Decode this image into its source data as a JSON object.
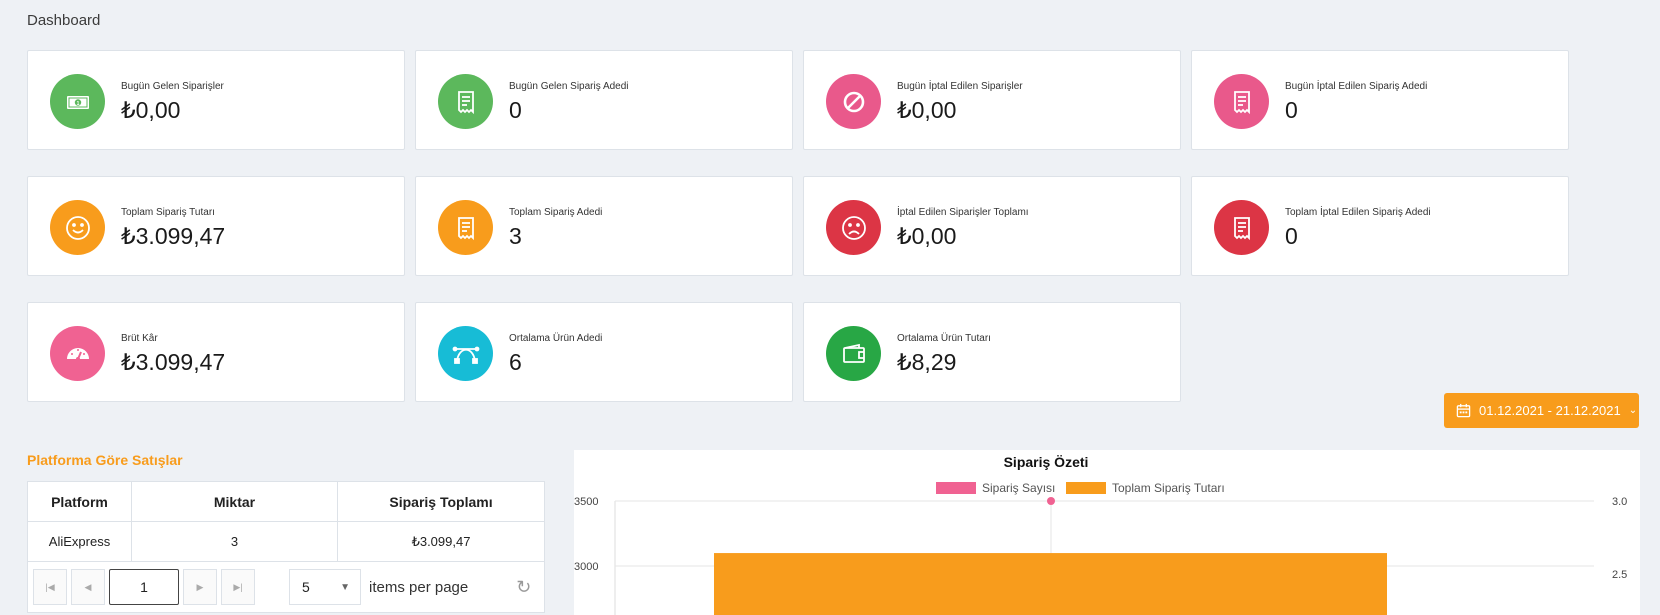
{
  "page": {
    "title": "Dashboard"
  },
  "cards": [
    {
      "label": "Bugün Gelen Siparişler",
      "value": "₺0,00",
      "icon": "money-icon",
      "color": "#5cb85c"
    },
    {
      "label": "Bugün Gelen Sipariş Adedi",
      "value": "0",
      "icon": "receipt-icon",
      "color": "#5cb85c"
    },
    {
      "label": "Bugün İptal Edilen Siparişler",
      "value": "₺0,00",
      "icon": "ban-icon",
      "color": "#e9598b"
    },
    {
      "label": "Bugün İptal Edilen Sipariş Adedi",
      "value": "0",
      "icon": "receipt-icon",
      "color": "#e9598b"
    },
    {
      "label": "Toplam Sipariş Tutarı",
      "value": "₺3.099,47",
      "icon": "smile-icon",
      "color": "#f89c1c"
    },
    {
      "label": "Toplam Sipariş Adedi",
      "value": "3",
      "icon": "receipt-icon",
      "color": "#f89c1c"
    },
    {
      "label": "İptal Edilen Siparişler Toplamı",
      "value": "₺0,00",
      "icon": "frown-icon",
      "color": "#dc3545"
    },
    {
      "label": "Toplam İptal Edilen Sipariş Adedi",
      "value": "0",
      "icon": "receipt-icon",
      "color": "#dc3545"
    },
    {
      "label": "Brüt Kâr",
      "value": "₺3.099,47",
      "icon": "gauge-icon",
      "color": "#f06292"
    },
    {
      "label": "Ortalama Ürün Adedi",
      "value": "6",
      "icon": "bezier-icon",
      "color": "#17bcd6"
    },
    {
      "label": "Ortalama Ürün Tutarı",
      "value": "₺8,29",
      "icon": "wallet-icon",
      "color": "#28a745"
    }
  ],
  "date_range": {
    "label": "01.12.2021 - 21.12.2021"
  },
  "platform_sales": {
    "title": "Platforma Göre Satışlar",
    "headers": [
      "Platform",
      "Miktar",
      "Sipariş Toplamı"
    ],
    "rows": [
      [
        "AliExpress",
        "3",
        "₺3.099,47"
      ]
    ],
    "pager": {
      "current_page": "1",
      "page_size": "5",
      "items_per_page_label": "items per page"
    }
  },
  "chart_data": {
    "type": "bar",
    "title": "Sipariş Özeti",
    "series": [
      {
        "name": "Sipariş Sayısı",
        "color": "#f06292",
        "type": "line",
        "values": [
          3
        ]
      },
      {
        "name": "Toplam Sipariş Tutarı",
        "color": "#f89c1c",
        "type": "bar",
        "values": [
          3099.47
        ]
      }
    ],
    "y_left_ticks": [
      "3500",
      "3000"
    ],
    "y_right_ticks": [
      "3.0",
      "2.5"
    ],
    "y_left_range": [
      0,
      3500
    ],
    "y_right_range": [
      0,
      3.0
    ],
    "legend_position": "top"
  },
  "colors": {
    "accent": "#f89c1c",
    "background": "#eef1f5"
  }
}
